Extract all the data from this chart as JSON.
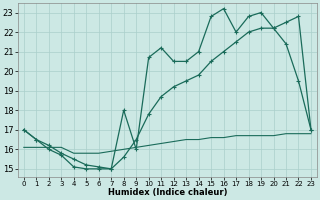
{
  "xlabel": "Humidex (Indice chaleur)",
  "bg_color": "#cce8e4",
  "grid_color": "#aacfcb",
  "line_color": "#1a6b5a",
  "xlim": [
    -0.5,
    23.5
  ],
  "ylim": [
    14.6,
    23.5
  ],
  "xticks": [
    0,
    1,
    2,
    3,
    4,
    5,
    6,
    7,
    8,
    9,
    10,
    11,
    12,
    13,
    14,
    15,
    16,
    17,
    18,
    19,
    20,
    21,
    22,
    23
  ],
  "yticks": [
    15,
    16,
    17,
    18,
    19,
    20,
    21,
    22,
    23
  ],
  "line1_x": [
    0,
    1,
    2,
    3,
    4,
    5,
    6,
    7,
    8,
    9,
    10,
    11,
    12,
    13,
    14,
    15,
    16,
    17,
    18,
    19,
    20,
    21,
    22,
    23
  ],
  "line1_y": [
    17.0,
    16.5,
    16.0,
    15.7,
    15.1,
    15.0,
    15.0,
    15.0,
    18.0,
    16.0,
    20.7,
    21.2,
    20.5,
    20.5,
    21.0,
    22.8,
    23.2,
    22.0,
    22.8,
    23.0,
    22.2,
    21.4,
    19.5,
    17.0
  ],
  "line2_x": [
    0,
    1,
    2,
    3,
    4,
    5,
    6,
    7,
    8,
    9,
    10,
    11,
    12,
    13,
    14,
    15,
    16,
    17,
    18,
    19,
    20,
    21,
    22,
    23
  ],
  "line2_y": [
    17.0,
    16.5,
    16.2,
    15.8,
    15.5,
    15.2,
    15.1,
    15.0,
    15.6,
    16.5,
    17.8,
    18.7,
    19.2,
    19.5,
    19.8,
    20.5,
    21.0,
    21.5,
    22.0,
    22.2,
    22.2,
    22.5,
    22.8,
    17.0
  ],
  "line3_x": [
    0,
    1,
    2,
    3,
    4,
    5,
    6,
    7,
    8,
    9,
    10,
    11,
    12,
    13,
    14,
    15,
    16,
    17,
    18,
    19,
    20,
    21,
    22,
    23
  ],
  "line3_y": [
    16.1,
    16.1,
    16.1,
    16.1,
    15.8,
    15.8,
    15.8,
    15.9,
    16.0,
    16.1,
    16.2,
    16.3,
    16.4,
    16.5,
    16.5,
    16.6,
    16.6,
    16.7,
    16.7,
    16.7,
    16.7,
    16.8,
    16.8,
    16.8
  ]
}
